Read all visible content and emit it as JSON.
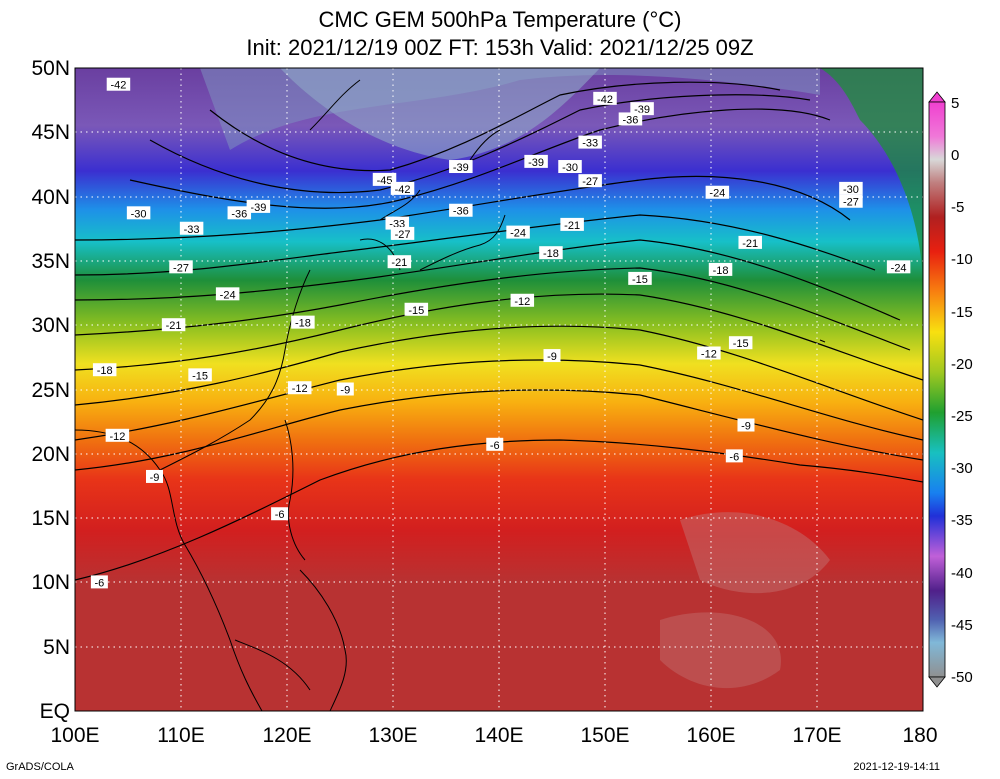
{
  "title_line1": "CMC GEM 500hPa Temperature (°C)",
  "title_line2": "Init: 2021/12/19 00Z  FT: 153h  Valid: 2021/12/25 09Z",
  "lat_labels": [
    "50N",
    "45N",
    "40N",
    "35N",
    "30N",
    "25N",
    "20N",
    "15N",
    "10N",
    "5N",
    "EQ"
  ],
  "lon_labels": [
    "100E",
    "110E",
    "120E",
    "130E",
    "140E",
    "150E",
    "160E",
    "170E",
    "180"
  ],
  "colorbar_labels": [
    "5",
    "0",
    "-5",
    "-10",
    "-15",
    "-20",
    "-25",
    "-30",
    "-35",
    "-40",
    "-45",
    "-50"
  ],
  "contour_labels": [
    {
      "text": "-42",
      "lon": 104.1,
      "lat": 48.7
    },
    {
      "text": "-42",
      "lon": 150.0,
      "lat": 47.6
    },
    {
      "text": "-39",
      "lon": 153.5,
      "lat": 46.8
    },
    {
      "text": "-36",
      "lon": 152.4,
      "lat": 46.0
    },
    {
      "text": "-33",
      "lon": 148.6,
      "lat": 44.2
    },
    {
      "text": "-39",
      "lon": 136.4,
      "lat": 42.3
    },
    {
      "text": "-39",
      "lon": 143.5,
      "lat": 42.7
    },
    {
      "text": "-30",
      "lon": 146.7,
      "lat": 42.3
    },
    {
      "text": "-45",
      "lon": 129.2,
      "lat": 41.3
    },
    {
      "text": "-42",
      "lon": 130.9,
      "lat": 40.6
    },
    {
      "text": "-27",
      "lon": 148.6,
      "lat": 41.2
    },
    {
      "text": "-24",
      "lon": 160.6,
      "lat": 40.3
    },
    {
      "text": "-30",
      "lon": 173.2,
      "lat": 40.6
    },
    {
      "text": "-27",
      "lon": 173.2,
      "lat": 39.6
    },
    {
      "text": "-30",
      "lon": 106.0,
      "lat": 38.7
    },
    {
      "text": "-39",
      "lon": 117.3,
      "lat": 39.2
    },
    {
      "text": "-36",
      "lon": 115.5,
      "lat": 38.7
    },
    {
      "text": "-33",
      "lon": 111.0,
      "lat": 37.5
    },
    {
      "text": "-36",
      "lon": 136.4,
      "lat": 38.9
    },
    {
      "text": "-33",
      "lon": 130.4,
      "lat": 37.9
    },
    {
      "text": "-27",
      "lon": 130.9,
      "lat": 37.1
    },
    {
      "text": "-21",
      "lon": 146.9,
      "lat": 37.8
    },
    {
      "text": "-24",
      "lon": 141.8,
      "lat": 37.2
    },
    {
      "text": "-21",
      "lon": 163.7,
      "lat": 36.4
    },
    {
      "text": "-18",
      "lon": 144.9,
      "lat": 35.6
    },
    {
      "text": "-21",
      "lon": 130.6,
      "lat": 34.9
    },
    {
      "text": "-27",
      "lon": 110.0,
      "lat": 34.5
    },
    {
      "text": "-24",
      "lon": 177.7,
      "lat": 34.5
    },
    {
      "text": "-18",
      "lon": 160.9,
      "lat": 34.3
    },
    {
      "text": "-15",
      "lon": 153.3,
      "lat": 33.6
    },
    {
      "text": "-24",
      "lon": 114.4,
      "lat": 32.4
    },
    {
      "text": "-12",
      "lon": 142.2,
      "lat": 31.9
    },
    {
      "text": "-15",
      "lon": 132.2,
      "lat": 31.2
    },
    {
      "text": "-18",
      "lon": 121.5,
      "lat": 30.2
    },
    {
      "text": "-21",
      "lon": 109.3,
      "lat": 30.0
    },
    {
      "text": "-15",
      "lon": 162.8,
      "lat": 28.6
    },
    {
      "text": "-12",
      "lon": 159.8,
      "lat": 27.8
    },
    {
      "text": "-9",
      "lon": 145.0,
      "lat": 27.6
    },
    {
      "text": "-18",
      "lon": 102.8,
      "lat": 26.5
    },
    {
      "text": "-15",
      "lon": 111.8,
      "lat": 26.1
    },
    {
      "text": "-12",
      "lon": 121.2,
      "lat": 25.1
    },
    {
      "text": "-9",
      "lon": 125.5,
      "lat": 25.0
    },
    {
      "text": "-9",
      "lon": 163.3,
      "lat": 22.2
    },
    {
      "text": "-12",
      "lon": 104.0,
      "lat": 21.4
    },
    {
      "text": "-6",
      "lon": 139.6,
      "lat": 20.7
    },
    {
      "text": "-6",
      "lon": 162.2,
      "lat": 19.8
    },
    {
      "text": "-9",
      "lon": 107.5,
      "lat": 18.2
    },
    {
      "text": "-6",
      "lon": 119.3,
      "lat": 15.3
    },
    {
      "text": "-6",
      "lon": 102.3,
      "lat": 10.0
    }
  ],
  "footer_left": "GrADS/COLA",
  "footer_right": "2021-12-19-14:11"
}
